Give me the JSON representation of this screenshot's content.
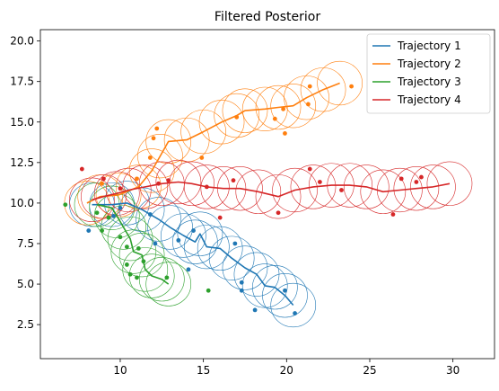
{
  "chart_data": {
    "type": "line",
    "title": "Filtered Posterior",
    "xlabel": "",
    "ylabel": "",
    "xlim": [
      5.2,
      32.5
    ],
    "ylim": [
      0.4,
      20.7
    ],
    "xticks": [
      10,
      15,
      20,
      25,
      30
    ],
    "yticks": [
      2.5,
      5.0,
      7.5,
      10.0,
      12.5,
      15.0,
      17.5,
      20.0
    ],
    "ytick_labels": [
      "2.5",
      "5.0",
      "7.5",
      "10.0",
      "12.5",
      "15.0",
      "17.5",
      "20.0"
    ],
    "grid": false,
    "legend": "top-right",
    "covariance_radius": 1.35,
    "series": [
      {
        "name": "Trajectory 1",
        "color": "#1f77b4",
        "path": [
          [
            8.3,
            9.9
          ],
          [
            9.5,
            9.9
          ],
          [
            10.4,
            10.0
          ],
          [
            11.3,
            9.6
          ],
          [
            12.3,
            9.0
          ],
          [
            13.0,
            8.5
          ],
          [
            13.8,
            8.0
          ],
          [
            14.5,
            7.6
          ],
          [
            14.8,
            8.1
          ],
          [
            15.2,
            7.3
          ],
          [
            16.0,
            7.2
          ],
          [
            16.7,
            6.6
          ],
          [
            17.5,
            6.0
          ],
          [
            18.2,
            5.6
          ],
          [
            18.7,
            4.9
          ],
          [
            19.3,
            4.8
          ],
          [
            19.9,
            4.3
          ],
          [
            20.4,
            3.7
          ]
        ],
        "observations": [
          [
            8.1,
            8.3
          ],
          [
            9.6,
            9.2
          ],
          [
            10.0,
            9.7
          ],
          [
            11.8,
            9.3
          ],
          [
            12.1,
            7.5
          ],
          [
            13.5,
            7.7
          ],
          [
            14.4,
            8.3
          ],
          [
            14.1,
            5.9
          ],
          [
            16.9,
            7.5
          ],
          [
            17.3,
            5.1
          ],
          [
            17.3,
            4.6
          ],
          [
            18.1,
            3.4
          ],
          [
            19.9,
            4.6
          ],
          [
            20.5,
            3.2
          ]
        ]
      },
      {
        "name": "Trajectory 2",
        "color": "#ff7f0e",
        "path": [
          [
            8.0,
            10.0
          ],
          [
            8.8,
            10.4
          ],
          [
            9.9,
            10.5
          ],
          [
            11.1,
            11.0
          ],
          [
            11.9,
            12.0
          ],
          [
            12.4,
            12.9
          ],
          [
            12.9,
            13.8
          ],
          [
            14.0,
            13.9
          ],
          [
            15.0,
            14.4
          ],
          [
            16.1,
            15.0
          ],
          [
            17.0,
            15.4
          ],
          [
            17.5,
            15.7
          ],
          [
            18.7,
            15.8
          ],
          [
            19.5,
            15.9
          ],
          [
            20.4,
            16.0
          ],
          [
            21.2,
            16.5
          ],
          [
            22.2,
            17.0
          ],
          [
            23.2,
            17.4
          ]
        ],
        "observations": [
          [
            8.9,
            11.2
          ],
          [
            11.0,
            11.5
          ],
          [
            11.8,
            12.8
          ],
          [
            12.0,
            14.0
          ],
          [
            12.2,
            14.6
          ],
          [
            14.9,
            12.8
          ],
          [
            17.0,
            15.3
          ],
          [
            19.3,
            15.2
          ],
          [
            19.8,
            15.8
          ],
          [
            19.9,
            14.3
          ],
          [
            21.3,
            16.1
          ],
          [
            21.4,
            17.2
          ],
          [
            23.9,
            17.2
          ]
        ]
      },
      {
        "name": "Trajectory 3",
        "color": "#2ca02c",
        "path": [
          [
            8.6,
            9.9
          ],
          [
            9.5,
            9.7
          ],
          [
            9.8,
            9.2
          ],
          [
            10.2,
            8.5
          ],
          [
            10.6,
            7.8
          ],
          [
            10.8,
            7.0
          ],
          [
            11.3,
            6.8
          ],
          [
            11.5,
            5.9
          ],
          [
            11.9,
            5.5
          ],
          [
            12.5,
            5.3
          ],
          [
            12.9,
            5.0
          ]
        ],
        "observations": [
          [
            6.7,
            9.9
          ],
          [
            8.6,
            9.4
          ],
          [
            8.9,
            8.3
          ],
          [
            9.3,
            9.1
          ],
          [
            10.0,
            7.9
          ],
          [
            10.4,
            7.3
          ],
          [
            10.4,
            6.2
          ],
          [
            10.6,
            5.6
          ],
          [
            11.0,
            5.4
          ],
          [
            11.1,
            7.2
          ],
          [
            11.4,
            6.4
          ],
          [
            12.8,
            5.4
          ],
          [
            15.3,
            4.6
          ]
        ]
      },
      {
        "name": "Trajectory 4",
        "color": "#d62728",
        "path": [
          [
            8.3,
            10.2
          ],
          [
            9.0,
            10.4
          ],
          [
            9.8,
            10.6
          ],
          [
            10.5,
            10.8
          ],
          [
            11.5,
            11.0
          ],
          [
            12.5,
            11.2
          ],
          [
            13.5,
            11.3
          ],
          [
            14.3,
            11.2
          ],
          [
            15.2,
            11.0
          ],
          [
            16.2,
            10.9
          ],
          [
            17.2,
            10.9
          ],
          [
            18.3,
            10.7
          ],
          [
            19.5,
            10.4
          ],
          [
            20.5,
            10.8
          ],
          [
            21.6,
            11.0
          ],
          [
            22.7,
            11.1
          ],
          [
            23.8,
            11.1
          ],
          [
            24.8,
            11.0
          ],
          [
            25.8,
            10.7
          ],
          [
            26.8,
            10.8
          ],
          [
            27.8,
            10.9
          ],
          [
            28.8,
            11.0
          ],
          [
            29.8,
            11.2
          ]
        ],
        "observations": [
          [
            7.7,
            12.1
          ],
          [
            9.0,
            11.5
          ],
          [
            10.0,
            10.9
          ],
          [
            12.3,
            11.2
          ],
          [
            12.9,
            11.4
          ],
          [
            15.2,
            11.0
          ],
          [
            16.0,
            9.1
          ],
          [
            16.8,
            11.4
          ],
          [
            19.5,
            9.4
          ],
          [
            21.4,
            12.1
          ],
          [
            22.0,
            11.3
          ],
          [
            23.3,
            10.8
          ],
          [
            26.4,
            9.3
          ],
          [
            26.9,
            11.5
          ],
          [
            27.8,
            11.3
          ],
          [
            28.1,
            11.6
          ]
        ]
      }
    ]
  }
}
